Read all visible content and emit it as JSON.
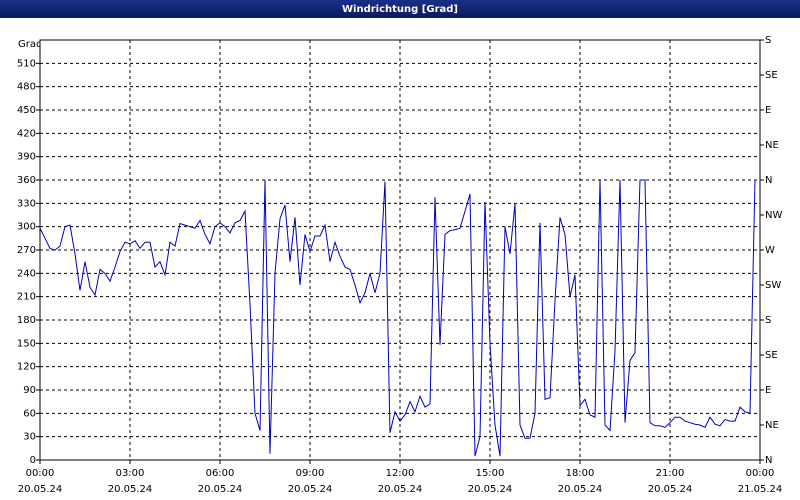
{
  "chart_data": {
    "type": "line",
    "title": "Windrichtung [Grad]",
    "y_label": "Grad",
    "x": [
      0,
      10,
      20,
      30,
      40,
      50,
      60,
      70,
      80,
      90,
      100,
      110,
      120,
      130,
      140,
      150,
      160,
      170,
      180,
      190,
      200,
      210,
      220,
      230,
      240,
      250,
      260,
      270,
      280,
      290,
      300,
      310,
      320,
      330,
      340,
      350,
      360,
      370,
      380,
      390,
      400,
      410,
      420,
      430,
      440,
      450,
      460,
      470,
      480,
      490,
      500,
      510,
      520,
      530,
      540,
      550,
      560,
      570,
      580,
      590,
      600,
      610,
      620,
      630,
      640,
      650,
      660,
      670,
      680,
      690,
      700,
      710,
      720,
      730,
      740,
      750,
      760,
      770,
      780,
      790,
      800,
      810,
      820,
      830,
      840,
      850,
      860,
      870,
      880,
      890,
      900,
      910,
      920,
      930,
      940,
      950,
      960,
      970,
      980,
      990,
      1000,
      1010,
      1020,
      1030,
      1040,
      1050,
      1060,
      1070,
      1080,
      1090,
      1100,
      1110,
      1120,
      1130,
      1140,
      1150,
      1160,
      1170,
      1180,
      1190,
      1200,
      1210,
      1220,
      1230,
      1240,
      1250,
      1260,
      1270,
      1280,
      1290,
      1300,
      1310,
      1320,
      1330,
      1340,
      1350,
      1360,
      1370,
      1380,
      1390,
      1400,
      1410,
      1420,
      1430
    ],
    "series": [
      {
        "color": "#0000c0",
        "values": [
          298,
          285,
          272,
          270,
          275,
          300,
          302,
          265,
          218,
          255,
          222,
          212,
          245,
          240,
          230,
          248,
          268,
          280,
          278,
          282,
          272,
          280,
          280,
          248,
          255,
          238,
          280,
          275,
          304,
          302,
          300,
          298,
          308,
          290,
          278,
          300,
          305,
          300,
          292,
          305,
          308,
          320,
          200,
          60,
          38,
          360,
          8,
          240,
          310,
          328,
          255,
          312,
          225,
          290,
          268,
          288,
          288,
          302,
          255,
          280,
          262,
          248,
          245,
          225,
          202,
          215,
          240,
          215,
          240,
          358,
          35,
          62,
          50,
          58,
          75,
          62,
          82,
          68,
          72,
          338,
          148,
          290,
          295,
          296,
          298,
          320,
          342,
          5,
          30,
          332,
          150,
          45,
          5,
          300,
          265,
          330,
          45,
          28,
          28,
          60,
          305,
          78,
          80,
          205,
          312,
          290,
          210,
          238,
          70,
          78,
          58,
          55,
          360,
          45,
          38,
          140,
          360,
          48,
          128,
          138,
          360,
          360,
          48,
          44,
          44,
          42,
          48,
          55,
          55,
          50,
          48,
          46,
          45,
          42,
          55,
          46,
          44,
          52,
          50,
          50,
          68,
          62,
          60,
          360
        ]
      }
    ],
    "xlim": [
      0,
      1440
    ],
    "xticks": [
      {
        "value": 0,
        "label": "00:00",
        "date": "20.05.24"
      },
      {
        "value": 180,
        "label": "03:00",
        "date": "20.05.24"
      },
      {
        "value": 360,
        "label": "06:00",
        "date": "20.05.24"
      },
      {
        "value": 540,
        "label": "09:00",
        "date": "20.05.24"
      },
      {
        "value": 720,
        "label": "12:00",
        "date": "20.05.24"
      },
      {
        "value": 900,
        "label": "15:00",
        "date": "20.05.24"
      },
      {
        "value": 1080,
        "label": "18:00",
        "date": "20.05.24"
      },
      {
        "value": 1260,
        "label": "21:00",
        "date": "20.05.24"
      },
      {
        "value": 1440,
        "label": "00:00",
        "date": "21.05.24"
      }
    ],
    "ylim": [
      0,
      540
    ],
    "yticks": [
      0,
      30,
      60,
      90,
      120,
      150,
      180,
      210,
      240,
      270,
      300,
      330,
      360,
      390,
      420,
      450,
      480,
      510
    ],
    "y2lim": [
      0,
      540
    ],
    "y2ticks": [
      {
        "value": 0,
        "label": "N"
      },
      {
        "value": 45,
        "label": "NE"
      },
      {
        "value": 90,
        "label": "E"
      },
      {
        "value": 135,
        "label": "SE"
      },
      {
        "value": 180,
        "label": "S"
      },
      {
        "value": 225,
        "label": "SW"
      },
      {
        "value": 270,
        "label": "W"
      },
      {
        "value": 315,
        "label": "NW"
      },
      {
        "value": 360,
        "label": "N"
      },
      {
        "value": 405,
        "label": "NE"
      },
      {
        "value": 450,
        "label": "E"
      },
      {
        "value": 495,
        "label": "SE"
      },
      {
        "value": 540,
        "label": "S"
      }
    ],
    "grid": true
  }
}
